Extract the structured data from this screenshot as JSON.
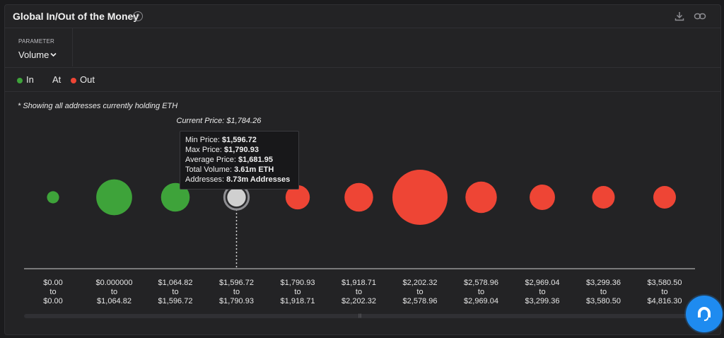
{
  "header": {
    "title": "Global In/Out of the Money",
    "help": "?"
  },
  "icons": {
    "help": "help-icon",
    "download": "download-icon",
    "link": "link-icon",
    "chat": "chat-icon"
  },
  "parameter": {
    "label": "PARAMETER",
    "value": "Volume"
  },
  "legend": [
    {
      "label": "In",
      "color": "#3ea33a"
    },
    {
      "label": "At",
      "color": ""
    },
    {
      "label": "Out",
      "color": "#ee4535"
    }
  ],
  "note": "* Showing all addresses currently holding ETH",
  "current_price_label": "Current Price: $1,784.26",
  "tooltip": {
    "lines": [
      {
        "label": "Min Price: ",
        "value": "$1,596.72"
      },
      {
        "label": "Max Price: ",
        "value": "$1,790.93"
      },
      {
        "label": "Average Price: ",
        "value": "$1,681.95"
      },
      {
        "label": "Total Volume: ",
        "value": "3.61m ETH"
      },
      {
        "label": "Addresses: ",
        "value": "8.73m Addresses"
      }
    ]
  },
  "chart_data": {
    "type": "scatter",
    "title": "Global In/Out of the Money",
    "current_price": 1784.26,
    "categories": [
      {
        "from": "$0.00",
        "to": "$0.00",
        "status": "in",
        "relative_size": 0.22
      },
      {
        "from": "$0.000000",
        "to": "$1,064.82",
        "status": "in",
        "relative_size": 0.65
      },
      {
        "from": "$1,064.82",
        "to": "$1,596.72",
        "status": "in",
        "relative_size": 0.52
      },
      {
        "from": "$1,596.72",
        "to": "$1,790.93",
        "status": "at",
        "relative_size": 0.44
      },
      {
        "from": "$1,790.93",
        "to": "$1,918.71",
        "status": "out",
        "relative_size": 0.44
      },
      {
        "from": "$1,918.71",
        "to": "$2,202.32",
        "status": "out",
        "relative_size": 0.52
      },
      {
        "from": "$2,202.32",
        "to": "$2,578.96",
        "status": "out",
        "relative_size": 1.0
      },
      {
        "from": "$2,578.96",
        "to": "$2,969.04",
        "status": "out",
        "relative_size": 0.57
      },
      {
        "from": "$2,969.04",
        "to": "$3,299.36",
        "status": "out",
        "relative_size": 0.46
      },
      {
        "from": "$3,299.36",
        "to": "$3,580.50",
        "status": "out",
        "relative_size": 0.41
      },
      {
        "from": "$3,580.50",
        "to": "$4,816.30",
        "status": "out",
        "relative_size": 0.41
      }
    ],
    "tick_joiner": "to",
    "colors": {
      "in": "#3ea33a",
      "at": "#d0d0d0",
      "out": "#ee4535"
    },
    "legend_position": "top-left",
    "grid": false
  }
}
